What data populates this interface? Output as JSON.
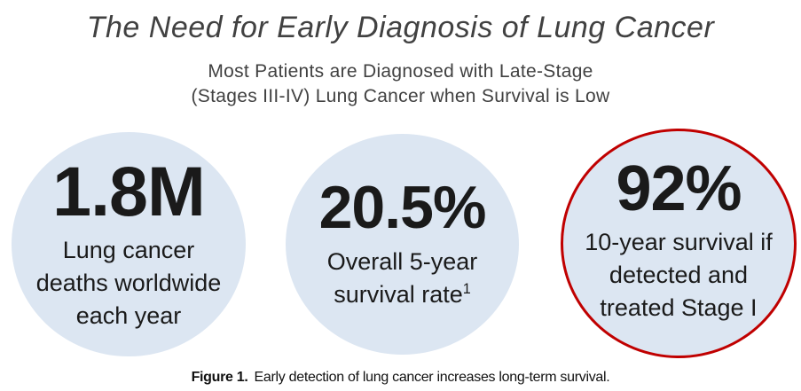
{
  "header": {
    "title": "The Need for Early Diagnosis of Lung Cancer",
    "subtitle_line1": "Most Patients are Diagnosed with Late-Stage",
    "subtitle_line2": "(Stages III-IV) Lung Cancer when Survival is Low"
  },
  "stats": [
    {
      "value": "1.8M",
      "description_lines": [
        "Lung cancer",
        "deaths worldwide",
        "each year"
      ],
      "highlighted": false
    },
    {
      "value": "20.5%",
      "description_lines": [
        "Overall 5-year",
        "survival rate"
      ],
      "superscript": "1",
      "highlighted": false
    },
    {
      "value": "92%",
      "description_lines": [
        "10-year survival if",
        "detected and",
        "treated Stage I"
      ],
      "highlighted": true
    }
  ],
  "caption": {
    "label": "Figure 1.",
    "text": "Early detection of lung cancer increases long-term survival."
  },
  "colors": {
    "circle_fill": "#dce6f2",
    "highlight_border": "#c00000",
    "heading_text": "#414141",
    "stat_text": "#1a1a1a",
    "caption_text": "#111111"
  }
}
